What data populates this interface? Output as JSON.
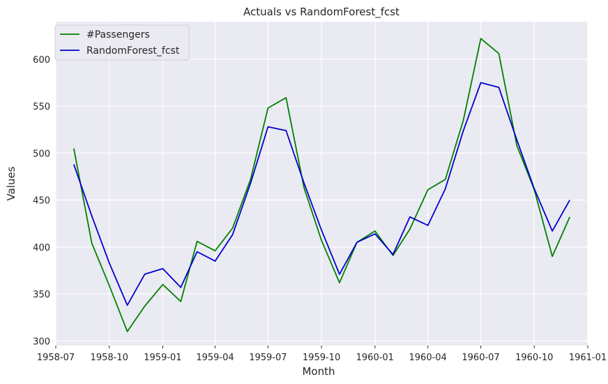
{
  "chart_data": {
    "type": "line",
    "title": "Actuals vs RandomForest_fcst",
    "xlabel": "Month",
    "ylabel": "Values",
    "grid": true,
    "legend_position": "top-left",
    "x": [
      "1958-08",
      "1958-09",
      "1958-10",
      "1958-11",
      "1958-12",
      "1959-01",
      "1959-02",
      "1959-03",
      "1959-04",
      "1959-05",
      "1959-06",
      "1959-07",
      "1959-08",
      "1959-09",
      "1959-10",
      "1959-11",
      "1959-12",
      "1960-01",
      "1960-02",
      "1960-03",
      "1960-04",
      "1960-05",
      "1960-06",
      "1960-07",
      "1960-08",
      "1960-09",
      "1960-10",
      "1960-11",
      "1960-12"
    ],
    "xlim": [
      "1958-07-01",
      "1961-01-01"
    ],
    "ylim": [
      295,
      640
    ],
    "x_ticks": [
      "1958-07",
      "1958-10",
      "1959-01",
      "1959-04",
      "1959-07",
      "1959-10",
      "1960-01",
      "1960-04",
      "1960-07",
      "1960-10",
      "1961-01"
    ],
    "y_ticks": [
      300,
      350,
      400,
      450,
      500,
      550,
      600
    ],
    "series": [
      {
        "name": "#Passengers",
        "color": "#008000",
        "values": [
          505,
          404,
          359,
          310,
          337,
          360,
          342,
          406,
          396,
          420,
          472,
          548,
          559,
          463,
          407,
          362,
          405,
          417,
          391,
          419,
          461,
          472,
          535,
          622,
          606,
          508,
          461,
          390,
          432
        ]
      },
      {
        "name": "RandomForest_fcst",
        "color": "#0000cd",
        "values": [
          488,
          433,
          383,
          338,
          371,
          377,
          357,
          395,
          385,
          413,
          468,
          528,
          524,
          468,
          418,
          371,
          405,
          414,
          392,
          432,
          423,
          462,
          524,
          575,
          570,
          514,
          462,
          417,
          450
        ]
      }
    ]
  }
}
